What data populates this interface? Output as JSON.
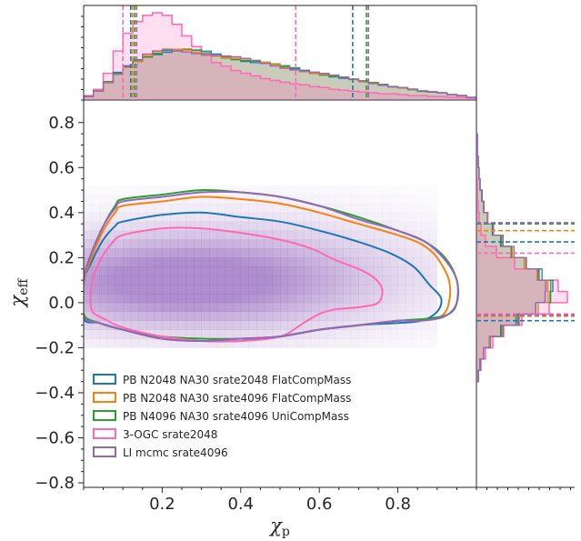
{
  "chart_data": {
    "type": "corner-plot",
    "xlabel": "χ",
    "xlabel_sub": "p",
    "ylabel": "χ",
    "ylabel_sub": "eff",
    "xlim": [
      0.0,
      1.0
    ],
    "ylim": [
      -0.82,
      0.9
    ],
    "x_ticks": [
      0.2,
      0.4,
      0.6,
      0.8
    ],
    "x_tick_labels": [
      "0.2",
      "0.4",
      "0.6",
      "0.8"
    ],
    "y_ticks": [
      0.8,
      0.6,
      0.4,
      0.2,
      0.0,
      -0.2,
      -0.4,
      -0.6,
      -0.8
    ],
    "y_tick_labels": [
      "0.8",
      "0.6",
      "0.4",
      "0.2",
      "0.0",
      "−0.2",
      "−0.4",
      "−0.6",
      "−0.8"
    ],
    "legend_position": "lower-left",
    "series": [
      {
        "name": "PB N2048 NA30 srate2048 FlatCompMass",
        "color": "#1f77b4",
        "xp_bounds": [
          0.12,
          0.685
        ],
        "xeff_bounds": [
          -0.08,
          0.27
        ],
        "contour": [
          [
            0.0,
            0.09
          ],
          [
            0.02,
            0.18
          ],
          [
            0.05,
            0.28
          ],
          [
            0.08,
            0.34
          ],
          [
            0.1,
            0.36
          ],
          [
            0.2,
            0.39
          ],
          [
            0.3,
            0.4
          ],
          [
            0.4,
            0.38
          ],
          [
            0.5,
            0.36
          ],
          [
            0.6,
            0.32
          ],
          [
            0.7,
            0.27
          ],
          [
            0.78,
            0.22
          ],
          [
            0.84,
            0.16
          ],
          [
            0.88,
            0.08
          ],
          [
            0.91,
            0.02
          ],
          [
            0.9,
            -0.04
          ],
          [
            0.86,
            -0.08
          ],
          [
            0.8,
            -0.09
          ],
          [
            0.7,
            -0.1
          ],
          [
            0.6,
            -0.12
          ],
          [
            0.5,
            -0.15
          ],
          [
            0.4,
            -0.17
          ],
          [
            0.3,
            -0.17
          ],
          [
            0.2,
            -0.16
          ],
          [
            0.1,
            -0.12
          ],
          [
            0.04,
            -0.09
          ],
          [
            0.0,
            -0.07
          ]
        ]
      },
      {
        "name": "PB N2048 NA30 srate4096 FlatCompMass",
        "color": "#ff7f0e",
        "xp_bounds": [
          0.125,
          0.725
        ],
        "xeff_bounds": [
          -0.06,
          0.32
        ],
        "contour": [
          [
            0.0,
            0.09
          ],
          [
            0.02,
            0.2
          ],
          [
            0.05,
            0.32
          ],
          [
            0.08,
            0.4
          ],
          [
            0.1,
            0.43
          ],
          [
            0.2,
            0.45
          ],
          [
            0.3,
            0.47
          ],
          [
            0.4,
            0.46
          ],
          [
            0.5,
            0.44
          ],
          [
            0.6,
            0.4
          ],
          [
            0.7,
            0.35
          ],
          [
            0.8,
            0.3
          ],
          [
            0.86,
            0.26
          ],
          [
            0.9,
            0.2
          ],
          [
            0.93,
            0.1
          ],
          [
            0.93,
            0.0
          ],
          [
            0.91,
            -0.06
          ],
          [
            0.86,
            -0.08
          ],
          [
            0.8,
            -0.08
          ],
          [
            0.7,
            -0.1
          ],
          [
            0.6,
            -0.12
          ],
          [
            0.5,
            -0.15
          ],
          [
            0.4,
            -0.16
          ],
          [
            0.3,
            -0.17
          ],
          [
            0.2,
            -0.16
          ],
          [
            0.1,
            -0.12
          ],
          [
            0.04,
            -0.09
          ],
          [
            0.0,
            -0.06
          ]
        ]
      },
      {
        "name": "PB N4096 NA30 srate4096 UniCompMass",
        "color": "#2ca02c",
        "xp_bounds": [
          0.13,
          0.72
        ],
        "xeff_bounds": [
          -0.05,
          0.35
        ],
        "contour": [
          [
            0.0,
            0.1
          ],
          [
            0.02,
            0.22
          ],
          [
            0.05,
            0.34
          ],
          [
            0.08,
            0.43
          ],
          [
            0.1,
            0.46
          ],
          [
            0.2,
            0.48
          ],
          [
            0.3,
            0.5
          ],
          [
            0.4,
            0.49
          ],
          [
            0.5,
            0.47
          ],
          [
            0.6,
            0.43
          ],
          [
            0.7,
            0.38
          ],
          [
            0.8,
            0.32
          ],
          [
            0.87,
            0.27
          ],
          [
            0.92,
            0.2
          ],
          [
            0.95,
            0.1
          ],
          [
            0.95,
            0.0
          ],
          [
            0.93,
            -0.05
          ],
          [
            0.88,
            -0.07
          ],
          [
            0.8,
            -0.08
          ],
          [
            0.7,
            -0.1
          ],
          [
            0.6,
            -0.12
          ],
          [
            0.5,
            -0.15
          ],
          [
            0.4,
            -0.16
          ],
          [
            0.3,
            -0.16
          ],
          [
            0.2,
            -0.15
          ],
          [
            0.1,
            -0.12
          ],
          [
            0.04,
            -0.09
          ],
          [
            0.0,
            -0.05
          ]
        ]
      },
      {
        "name": "3-OGC srate2048",
        "color": "#ff69b4",
        "xp_bounds": [
          0.1,
          0.54
        ],
        "xeff_bounds": [
          -0.05,
          0.22
        ],
        "contour": [
          [
            0.02,
            0.08
          ],
          [
            0.04,
            0.18
          ],
          [
            0.07,
            0.26
          ],
          [
            0.1,
            0.3
          ],
          [
            0.2,
            0.33
          ],
          [
            0.3,
            0.33
          ],
          [
            0.4,
            0.31
          ],
          [
            0.5,
            0.28
          ],
          [
            0.58,
            0.24
          ],
          [
            0.64,
            0.19
          ],
          [
            0.7,
            0.15
          ],
          [
            0.74,
            0.11
          ],
          [
            0.76,
            0.06
          ],
          [
            0.75,
            0.0
          ],
          [
            0.7,
            -0.02
          ],
          [
            0.64,
            -0.03
          ],
          [
            0.6,
            -0.05
          ],
          [
            0.56,
            -0.09
          ],
          [
            0.5,
            -0.15
          ],
          [
            0.4,
            -0.17
          ],
          [
            0.3,
            -0.17
          ],
          [
            0.2,
            -0.15
          ],
          [
            0.1,
            -0.11
          ],
          [
            0.05,
            -0.07
          ],
          [
            0.02,
            -0.03
          ]
        ]
      },
      {
        "name": "LI mcmc srate4096",
        "color": "#9467bd",
        "xp_bounds": [
          0.135,
          0.725
        ],
        "xeff_bounds": [
          -0.055,
          0.355
        ],
        "contour": [
          [
            0.0,
            0.1
          ],
          [
            0.02,
            0.22
          ],
          [
            0.05,
            0.34
          ],
          [
            0.08,
            0.42
          ],
          [
            0.1,
            0.45
          ],
          [
            0.2,
            0.47
          ],
          [
            0.3,
            0.49
          ],
          [
            0.4,
            0.49
          ],
          [
            0.5,
            0.47
          ],
          [
            0.6,
            0.43
          ],
          [
            0.7,
            0.37
          ],
          [
            0.8,
            0.32
          ],
          [
            0.87,
            0.27
          ],
          [
            0.92,
            0.19
          ],
          [
            0.95,
            0.1
          ],
          [
            0.95,
            0.0
          ],
          [
            0.92,
            -0.06
          ],
          [
            0.86,
            -0.08
          ],
          [
            0.8,
            -0.08
          ],
          [
            0.7,
            -0.1
          ],
          [
            0.6,
            -0.12
          ],
          [
            0.5,
            -0.15
          ],
          [
            0.4,
            -0.16
          ],
          [
            0.3,
            -0.17
          ],
          [
            0.2,
            -0.16
          ],
          [
            0.1,
            -0.12
          ],
          [
            0.04,
            -0.09
          ],
          [
            0.0,
            -0.06
          ]
        ]
      }
    ],
    "marginal_top": {
      "bins": [
        0.0,
        0.025,
        0.05,
        0.075,
        0.1,
        0.125,
        0.15,
        0.175,
        0.2,
        0.225,
        0.25,
        0.275,
        0.3,
        0.325,
        0.35,
        0.375,
        0.4,
        0.425,
        0.45,
        0.475,
        0.5,
        0.525,
        0.55,
        0.575,
        0.6,
        0.625,
        0.65,
        0.675,
        0.7,
        0.725,
        0.75,
        0.775,
        0.8,
        0.825,
        0.85,
        0.875,
        0.9,
        0.925,
        0.95,
        0.975
      ],
      "pink_density": [
        0.05,
        0.12,
        0.3,
        0.55,
        0.75,
        0.88,
        0.95,
        0.98,
        0.95,
        0.85,
        0.72,
        0.6,
        0.5,
        0.42,
        0.38,
        0.33,
        0.3,
        0.27,
        0.24,
        0.22,
        0.2,
        0.18,
        0.17,
        0.15,
        0.14,
        0.12,
        0.11,
        0.1,
        0.09,
        0.08,
        0.07,
        0.07,
        0.06,
        0.05,
        0.05,
        0.04,
        0.04,
        0.03,
        0.03,
        0.02
      ],
      "shared_density": [
        0.04,
        0.1,
        0.2,
        0.3,
        0.38,
        0.45,
        0.5,
        0.53,
        0.55,
        0.55,
        0.55,
        0.54,
        0.53,
        0.51,
        0.49,
        0.47,
        0.45,
        0.43,
        0.41,
        0.39,
        0.37,
        0.35,
        0.33,
        0.31,
        0.29,
        0.27,
        0.25,
        0.23,
        0.21,
        0.19,
        0.17,
        0.15,
        0.14,
        0.12,
        0.1,
        0.09,
        0.08,
        0.06,
        0.05,
        0.03
      ]
    },
    "marginal_right": {
      "bins": [
        -0.35,
        -0.3,
        -0.25,
        -0.2,
        -0.15,
        -0.1,
        -0.05,
        0.0,
        0.05,
        0.1,
        0.15,
        0.2,
        0.25,
        0.3,
        0.35,
        0.4,
        0.45,
        0.5,
        0.55,
        0.6,
        0.65,
        0.7
      ],
      "pink_density": [
        0.02,
        0.05,
        0.1,
        0.18,
        0.3,
        0.5,
        0.8,
        1.0,
        0.9,
        0.68,
        0.42,
        0.22,
        0.1,
        0.05,
        0.03,
        0.02,
        0.01,
        0.01,
        0.0,
        0.0,
        0.0,
        0.0
      ],
      "shared_density": [
        0.02,
        0.04,
        0.08,
        0.15,
        0.28,
        0.45,
        0.65,
        0.78,
        0.8,
        0.7,
        0.55,
        0.4,
        0.28,
        0.18,
        0.12,
        0.08,
        0.06,
        0.04,
        0.03,
        0.02,
        0.01,
        0.01
      ]
    }
  }
}
